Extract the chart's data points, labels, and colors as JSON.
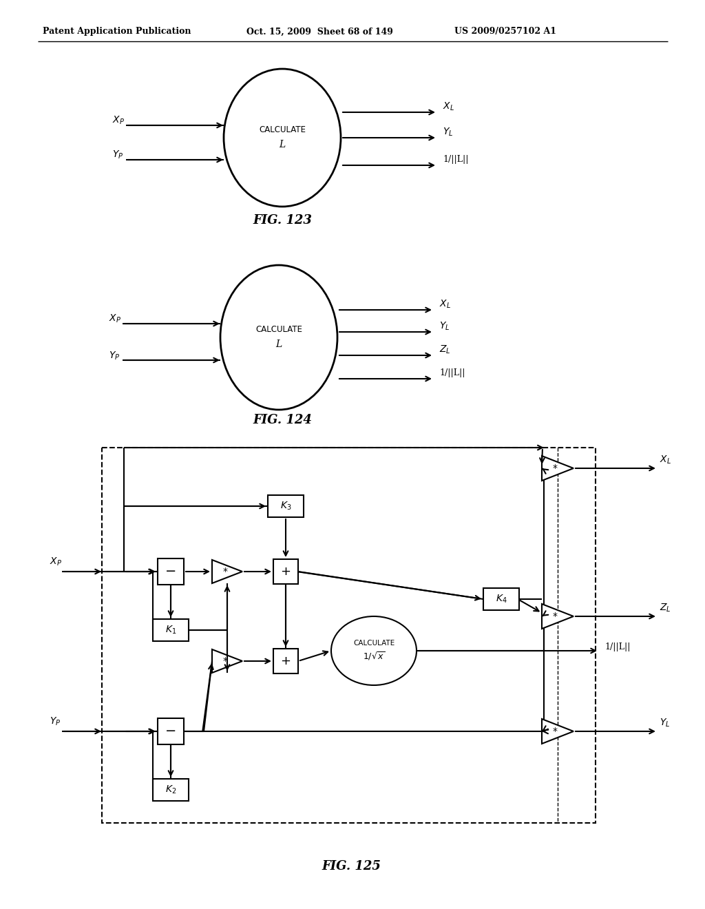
{
  "header_left": "Patent Application Publication",
  "header_mid": "Oct. 15, 2009  Sheet 68 of 149",
  "header_right": "US 2009/0257102 A1",
  "fig123_caption": "FIG. 123",
  "fig124_caption": "FIG. 124",
  "fig125_caption": "FIG. 125",
  "bg_color": "#ffffff",
  "line_color": "#000000"
}
